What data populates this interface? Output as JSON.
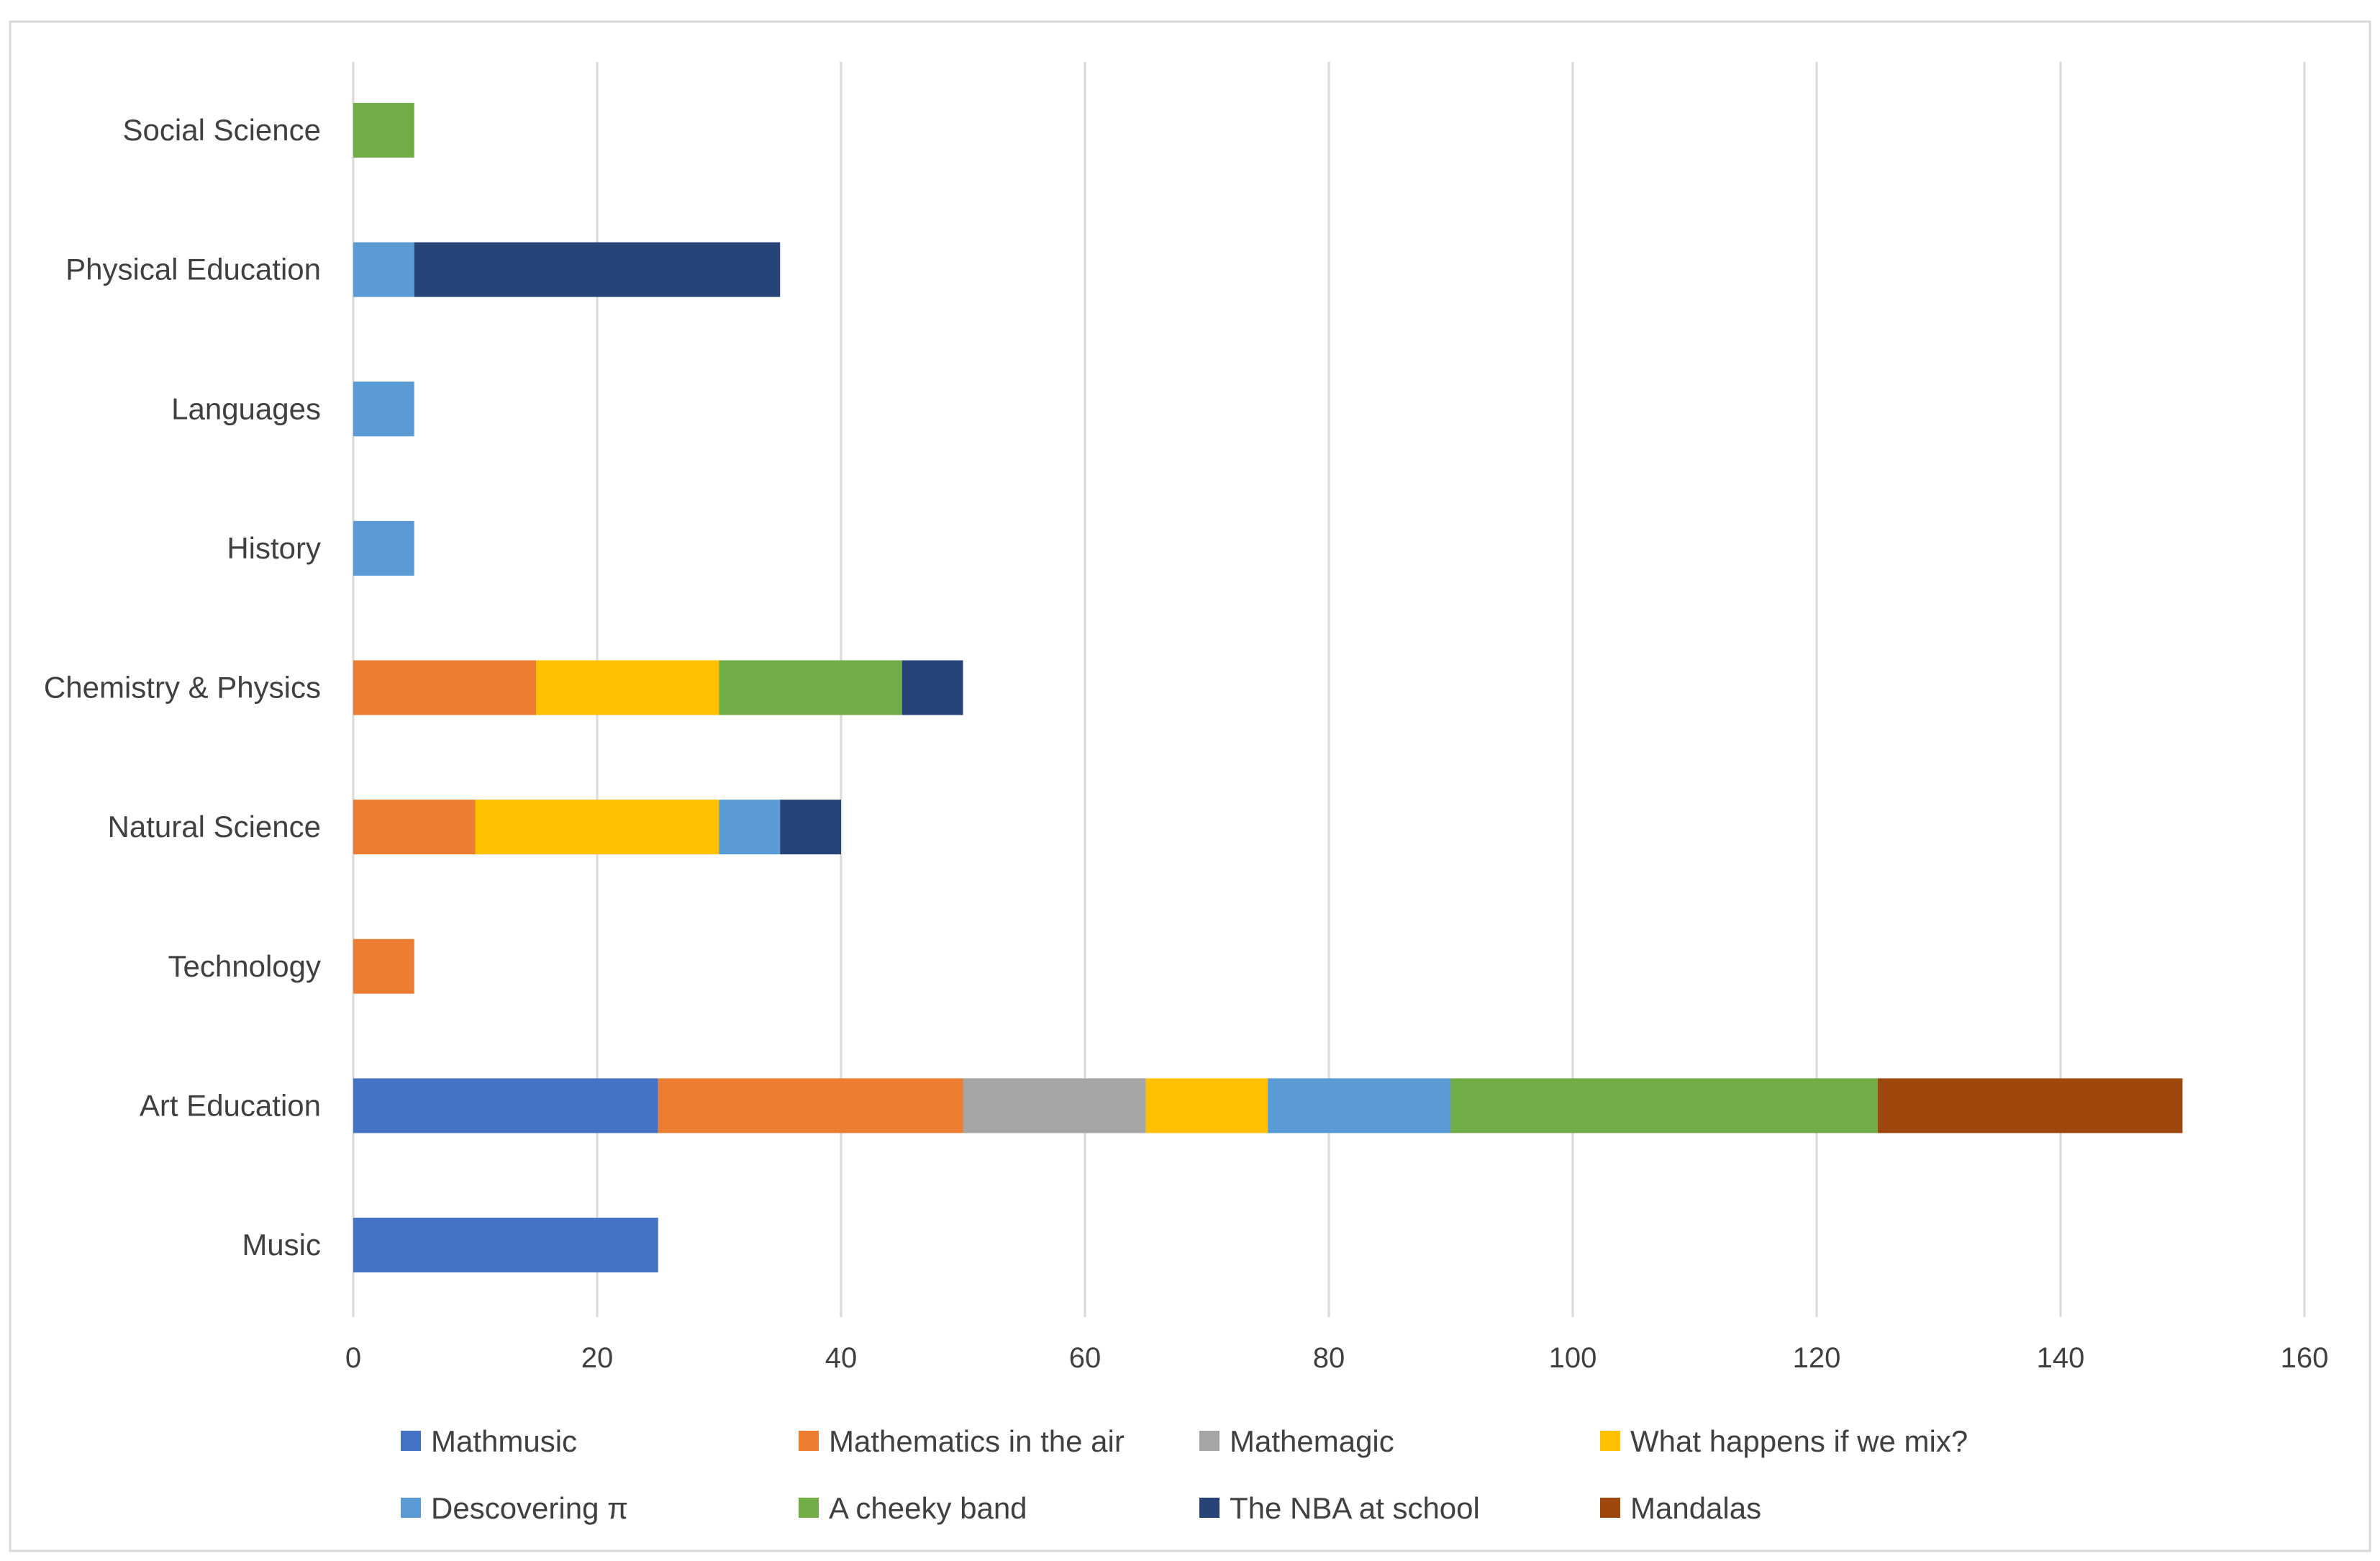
{
  "chart_data": {
    "type": "bar",
    "orientation": "horizontal",
    "stacked": true,
    "title": "",
    "xlabel": "",
    "ylabel": "",
    "xlim": [
      0,
      160
    ],
    "xticks": [
      0,
      20,
      40,
      60,
      80,
      100,
      120,
      140,
      160
    ],
    "grid": true,
    "legend_position": "bottom",
    "categories": [
      "Music",
      "Art Education",
      "Technology",
      "Natural Science",
      "Chemistry & Physics",
      "History",
      "Languages",
      "Physical Education",
      "Social Science"
    ],
    "series": [
      {
        "name": "Mathmusic",
        "color": "#4472C4",
        "values": [
          25,
          25,
          0,
          0,
          0,
          0,
          0,
          0,
          0
        ]
      },
      {
        "name": "Mathematics in the air",
        "color": "#ED7D31",
        "values": [
          0,
          25,
          5,
          10,
          15,
          0,
          0,
          0,
          0
        ]
      },
      {
        "name": "Mathemagic",
        "color": "#A5A5A5",
        "values": [
          0,
          15,
          0,
          0,
          0,
          0,
          0,
          0,
          0
        ]
      },
      {
        "name": "What happens if we mix?",
        "color": "#FFC000",
        "values": [
          0,
          10,
          0,
          20,
          15,
          0,
          0,
          0,
          0
        ]
      },
      {
        "name": "Descovering π",
        "color": "#5B9BD5",
        "values": [
          0,
          15,
          0,
          5,
          0,
          5,
          5,
          5,
          0
        ]
      },
      {
        "name": "A cheeky band",
        "color": "#70AD47",
        "values": [
          0,
          35,
          0,
          0,
          15,
          0,
          0,
          0,
          5
        ]
      },
      {
        "name": "The NBA at school",
        "color": "#264478",
        "values": [
          0,
          0,
          0,
          5,
          5,
          0,
          0,
          30,
          0
        ]
      },
      {
        "name": "Mandalas",
        "color": "#9E480E",
        "values": [
          0,
          25,
          0,
          0,
          0,
          0,
          0,
          0,
          0
        ]
      }
    ]
  },
  "style": {
    "grid_color": "#D9D9D9",
    "frame_color": "#D9D9D9",
    "text_color": "#404040",
    "background": "#FFFFFF"
  }
}
